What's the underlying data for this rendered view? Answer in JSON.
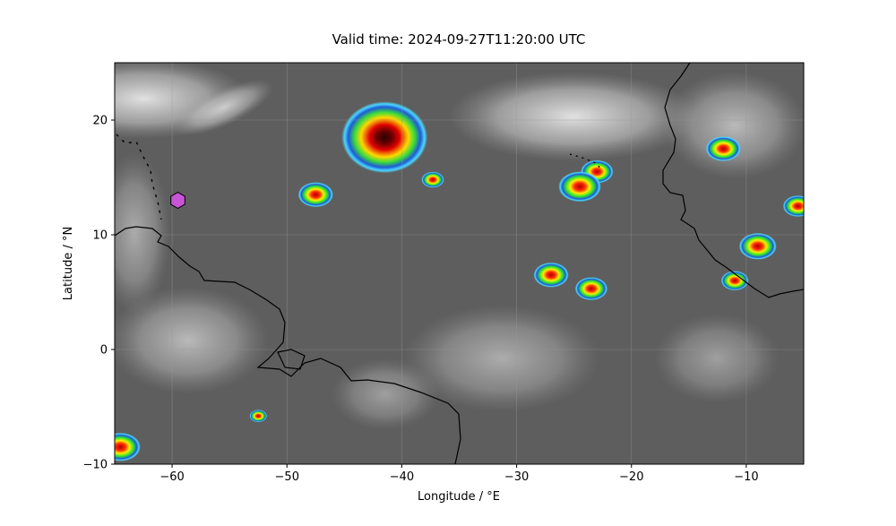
{
  "title": "Valid time: 2024-09-27T11:20:00 UTC",
  "xlabel": "Longitude / °E",
  "ylabel": "Latitude / °N",
  "xlim": [
    -65,
    -5
  ],
  "ylim": [
    -10,
    25
  ],
  "xticks": [
    {
      "value": -60,
      "label": "−60"
    },
    {
      "value": -50,
      "label": "−50"
    },
    {
      "value": -40,
      "label": "−40"
    },
    {
      "value": -30,
      "label": "−30"
    },
    {
      "value": -20,
      "label": "−20"
    },
    {
      "value": -10,
      "label": "−10"
    }
  ],
  "yticks": [
    {
      "value": -10,
      "label": "−10"
    },
    {
      "value": 0,
      "label": "0"
    },
    {
      "value": 10,
      "label": "10"
    },
    {
      "value": 20,
      "label": "20"
    }
  ],
  "colors": {
    "background": "#5e5e5e",
    "coastline": "#000000",
    "marker_fill": "#c855d6",
    "marker_edge": "#000000",
    "grid": "#9a9a9a"
  },
  "grid": true,
  "marker": {
    "icon": "hexagon-marker-icon",
    "lon": -59.5,
    "lat": 13.0
  },
  "features": {
    "storm": {
      "lon": -41.5,
      "lat": 18.5
    },
    "convection": [
      {
        "lon": -47.5,
        "lat": 13.5
      },
      {
        "lon": -37.3,
        "lat": 14.8
      },
      {
        "lon": -23,
        "lat": 15.5
      },
      {
        "lon": -24.5,
        "lat": 14.2
      },
      {
        "lon": -27,
        "lat": 6.5
      },
      {
        "lon": -23.5,
        "lat": 5.3
      },
      {
        "lon": -9,
        "lat": 9
      },
      {
        "lon": -5.5,
        "lat": 12.5
      },
      {
        "lon": -11,
        "lat": 6
      },
      {
        "lon": -64.5,
        "lat": -8.5
      },
      {
        "lon": -52.5,
        "lat": -5.8
      },
      {
        "lon": -12,
        "lat": 17.5
      }
    ]
  }
}
